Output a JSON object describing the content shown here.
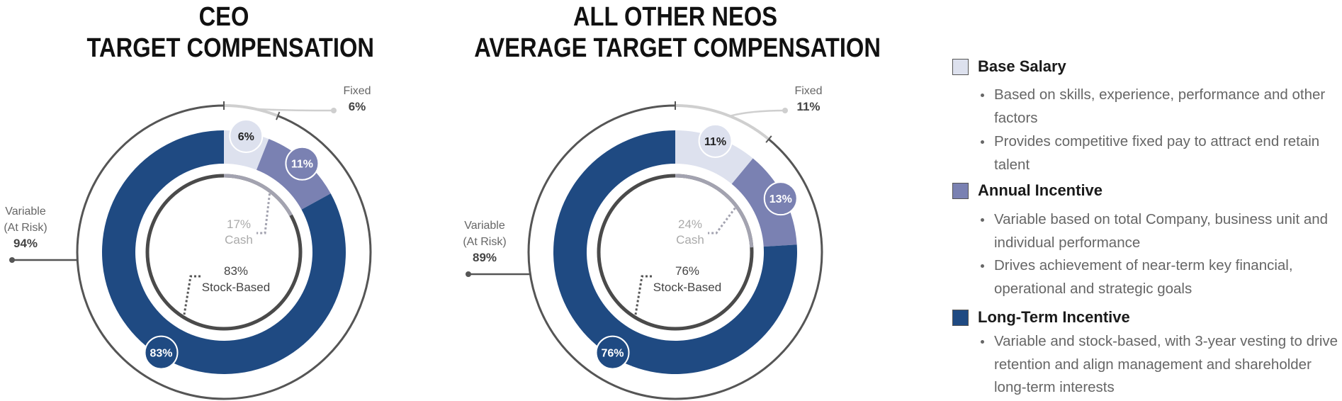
{
  "chart_data": [
    {
      "type": "pie",
      "title_lines": [
        "CEO",
        "TARGET COMPENSATION"
      ],
      "segments": [
        {
          "name": "Base Salary",
          "value": 6,
          "label": "6%"
        },
        {
          "name": "Annual Incentive",
          "value": 11,
          "label": "11%"
        },
        {
          "name": "Long-Term Incentive",
          "value": 83,
          "label": "83%"
        }
      ],
      "fixed": {
        "label": "Fixed",
        "value": 6,
        "value_label": "6%"
      },
      "variable": {
        "label_lines": [
          "Variable",
          "(At Risk)"
        ],
        "value": 94,
        "value_label": "94%"
      },
      "cash": {
        "value": 17,
        "value_label": "17%",
        "label": "Cash"
      },
      "stock": {
        "value": 83,
        "value_label": "83%",
        "label": "Stock-Based"
      }
    },
    {
      "type": "pie",
      "title_lines": [
        "ALL OTHER NEOS",
        "AVERAGE TARGET COMPENSATION"
      ],
      "segments": [
        {
          "name": "Base Salary",
          "value": 11,
          "label": "11%"
        },
        {
          "name": "Annual Incentive",
          "value": 13,
          "label": "13%"
        },
        {
          "name": "Long-Term Incentive",
          "value": 76,
          "label": "76%"
        }
      ],
      "fixed": {
        "label": "Fixed",
        "value": 11,
        "value_label": "11%"
      },
      "variable": {
        "label_lines": [
          "Variable",
          "(At Risk)"
        ],
        "value": 89,
        "value_label": "89%"
      },
      "cash": {
        "value": 24,
        "value_label": "24%",
        "label": "Cash"
      },
      "stock": {
        "value": 76,
        "value_label": "76%",
        "label": "Stock-Based"
      }
    }
  ],
  "colors": {
    "base_salary": "#dde1ee",
    "annual_incentive": "#7a81b2",
    "long_term_incentive": "#1f4a82",
    "ring": "#555555",
    "fixed_arc": "#cfcfcf",
    "cash_arc": "#a3a3b0",
    "inner_ring": "#4a4a4a"
  },
  "legend": [
    {
      "label": "Base Salary",
      "color": "#dde1ee",
      "bullets": [
        "Based on skills, experience, performance and other factors",
        "Provides competitive fixed pay to attract end retain talent"
      ]
    },
    {
      "label": "Annual Incentive",
      "color": "#7a81b2",
      "bullets": [
        "Variable based on total Company, business unit and individual performance",
        "Drives achievement of near-term key financial, operational and strategic goals"
      ]
    },
    {
      "label": "Long-Term Incentive",
      "color": "#1f4a82",
      "bullets": [
        "Variable and stock-based, with 3-year vesting to drive retention and align management and shareholder long-term interests"
      ]
    }
  ]
}
